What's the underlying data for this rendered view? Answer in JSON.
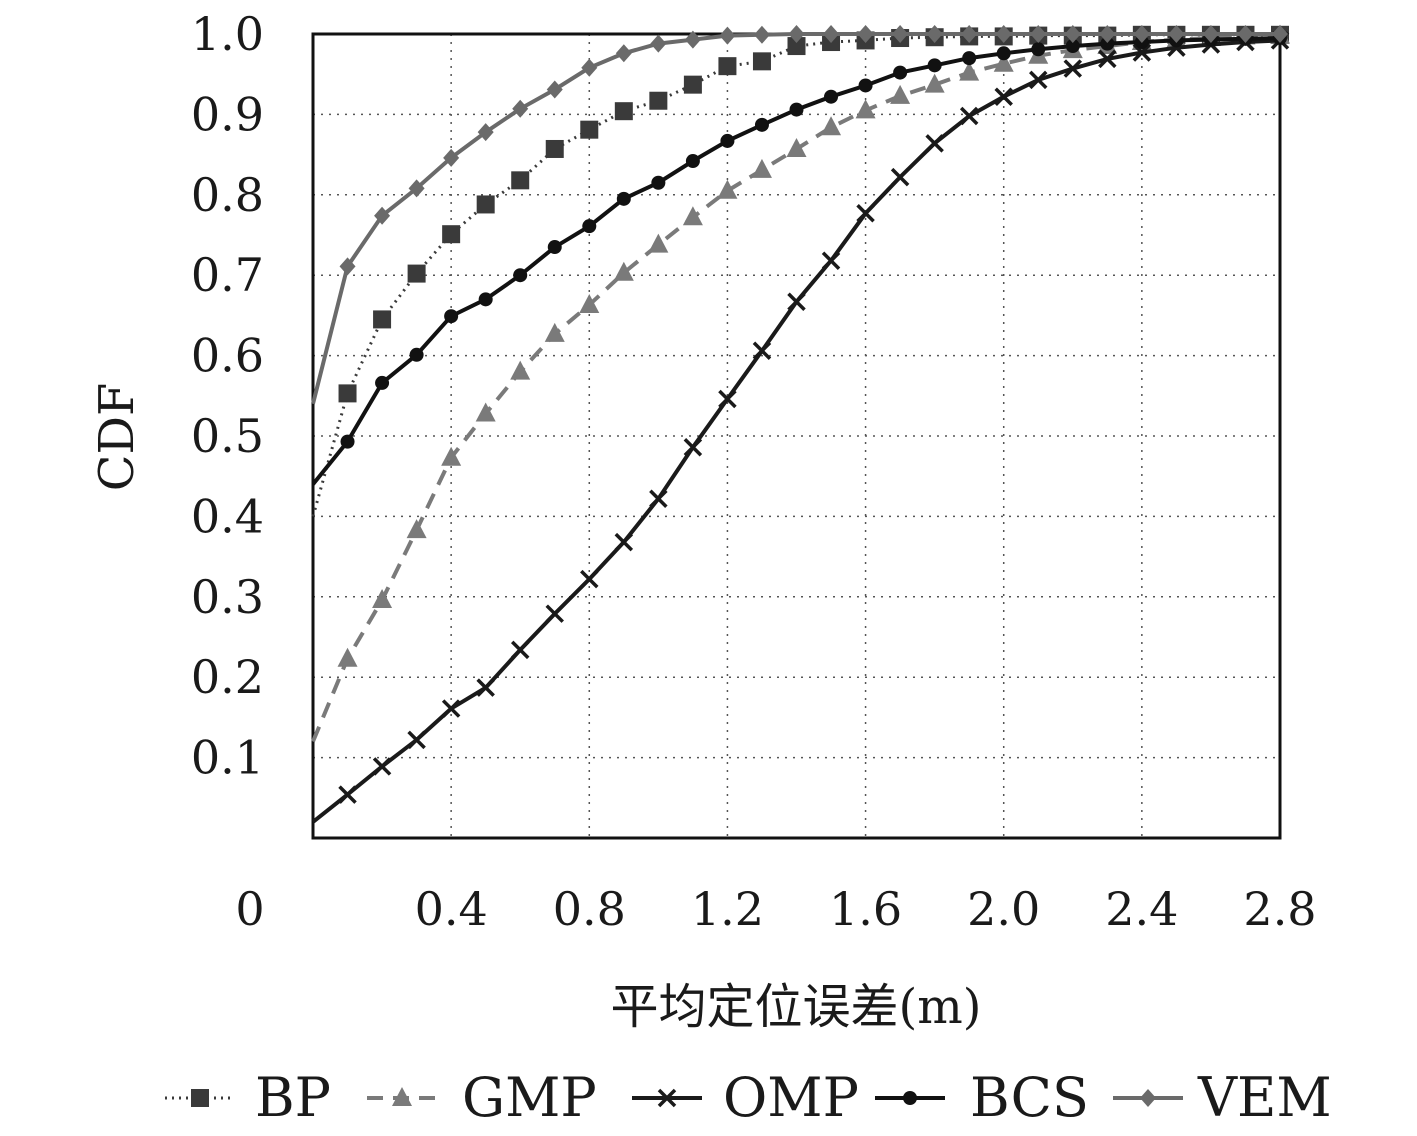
{
  "chart_data": {
    "type": "line",
    "title": "",
    "xlabel": "平均定位误差(m)",
    "ylabel": "CDF",
    "xlim": [
      0,
      2.8
    ],
    "ylim": [
      0,
      1.0
    ],
    "x_ticks": [
      "0",
      "0.4",
      "0.8",
      "1.2",
      "1.6",
      "2.0",
      "2.4",
      "2.8"
    ],
    "y_ticks": [
      "0.1",
      "0.2",
      "0.3",
      "0.4",
      "0.5",
      "0.6",
      "0.7",
      "0.8",
      "0.9",
      "1.0"
    ],
    "grid": true,
    "legend_position": "bottom",
    "series": [
      {
        "name": "BP",
        "color": "#3a3a3a",
        "line_style": "dotted",
        "marker": "square",
        "x": [
          0,
          0.1,
          0.2,
          0.3,
          0.4,
          0.5,
          0.6,
          0.7,
          0.8,
          0.9,
          1.0,
          1.1,
          1.2,
          1.3,
          1.4,
          1.5,
          1.6,
          1.7,
          1.8,
          1.9,
          2.0,
          2.1,
          2.2,
          2.3,
          2.4,
          2.5,
          2.6,
          2.7,
          2.8
        ],
        "y": [
          0.4,
          0.553,
          0.645,
          0.702,
          0.751,
          0.788,
          0.818,
          0.857,
          0.881,
          0.904,
          0.917,
          0.937,
          0.96,
          0.966,
          0.985,
          0.99,
          0.992,
          0.995,
          0.996,
          0.997,
          0.997,
          0.998,
          0.998,
          0.998,
          0.999,
          0.999,
          0.999,
          0.999,
          0.999
        ]
      },
      {
        "name": "GMP",
        "color": "#7a7a7a",
        "line_style": "dashed",
        "marker": "triangle",
        "x": [
          0,
          0.1,
          0.2,
          0.3,
          0.4,
          0.5,
          0.6,
          0.7,
          0.8,
          0.9,
          1.0,
          1.1,
          1.2,
          1.3,
          1.4,
          1.5,
          1.6,
          1.7,
          1.8,
          1.9,
          2.0,
          2.1,
          2.2,
          2.3,
          2.4,
          2.5,
          2.6,
          2.7,
          2.8
        ],
        "y": [
          0.12,
          0.223,
          0.296,
          0.383,
          0.473,
          0.528,
          0.58,
          0.627,
          0.663,
          0.703,
          0.738,
          0.772,
          0.805,
          0.831,
          0.857,
          0.884,
          0.905,
          0.923,
          0.937,
          0.952,
          0.963,
          0.973,
          0.98,
          0.985,
          0.99,
          0.993,
          0.995,
          0.997,
          0.998
        ]
      },
      {
        "name": "OMP",
        "color": "#1a1a1a",
        "line_style": "solid",
        "marker": "x",
        "x": [
          0,
          0.1,
          0.2,
          0.3,
          0.4,
          0.5,
          0.6,
          0.7,
          0.8,
          0.9,
          1.0,
          1.1,
          1.2,
          1.3,
          1.4,
          1.5,
          1.6,
          1.7,
          1.8,
          1.9,
          2.0,
          2.1,
          2.2,
          2.3,
          2.4,
          2.5,
          2.6,
          2.7,
          2.8
        ],
        "y": [
          0.02,
          0.054,
          0.089,
          0.122,
          0.161,
          0.187,
          0.234,
          0.279,
          0.322,
          0.368,
          0.422,
          0.486,
          0.546,
          0.606,
          0.667,
          0.718,
          0.777,
          0.822,
          0.864,
          0.898,
          0.922,
          0.943,
          0.957,
          0.969,
          0.977,
          0.983,
          0.987,
          0.99,
          0.992
        ]
      },
      {
        "name": "BCS",
        "color": "#111111",
        "line_style": "solid",
        "marker": "circle",
        "x": [
          0,
          0.1,
          0.2,
          0.3,
          0.4,
          0.5,
          0.6,
          0.7,
          0.8,
          0.9,
          1.0,
          1.1,
          1.2,
          1.3,
          1.4,
          1.5,
          1.6,
          1.7,
          1.8,
          1.9,
          2.0,
          2.1,
          2.2,
          2.3,
          2.4,
          2.5,
          2.6,
          2.7,
          2.8
        ],
        "y": [
          0.44,
          0.493,
          0.566,
          0.601,
          0.649,
          0.67,
          0.7,
          0.735,
          0.761,
          0.795,
          0.815,
          0.842,
          0.867,
          0.887,
          0.906,
          0.922,
          0.936,
          0.952,
          0.961,
          0.97,
          0.976,
          0.981,
          0.985,
          0.988,
          0.99,
          0.992,
          0.993,
          0.994,
          0.995
        ]
      },
      {
        "name": "VEM",
        "color": "#6a6a6a",
        "line_style": "solid",
        "marker": "diamond",
        "x": [
          0,
          0.1,
          0.2,
          0.3,
          0.4,
          0.5,
          0.6,
          0.7,
          0.8,
          0.9,
          1.0,
          1.1,
          1.2,
          1.3,
          1.4,
          1.5,
          1.6,
          1.7,
          1.8,
          1.9,
          2.0,
          2.1,
          2.2,
          2.3,
          2.4,
          2.5,
          2.6,
          2.7,
          2.8
        ],
        "y": [
          0.54,
          0.711,
          0.774,
          0.808,
          0.846,
          0.878,
          0.907,
          0.931,
          0.958,
          0.976,
          0.988,
          0.993,
          0.998,
          0.999,
          1.0,
          1.0,
          1.0,
          1.0,
          1.0,
          1.0,
          1.0,
          1.0,
          1.0,
          1.0,
          1.0,
          1.0,
          1.0,
          1.0,
          1.0
        ]
      }
    ]
  }
}
